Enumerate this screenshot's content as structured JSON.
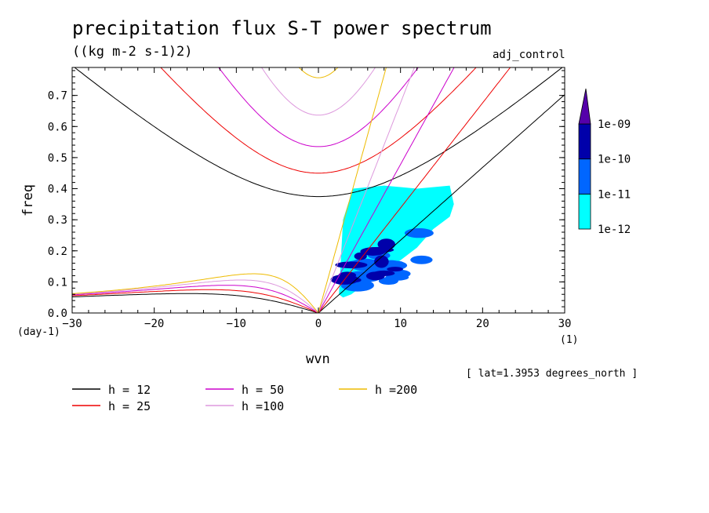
{
  "header": {
    "title": "precipitation flux S-T power spectrum",
    "units": "((kg m-2 s-1)2)",
    "run_name": "adj_control",
    "lat_note": "[ lat=1.3953 degrees_north ]"
  },
  "colors": {
    "h12": "#000000",
    "h25": "#ee0000",
    "h50": "#cc00cc",
    "h100": "#dd99dd",
    "h200": "#eebb00",
    "fill_cyan": "#00ffff",
    "fill_blue": "#0066ff",
    "fill_dark": "#0000aa",
    "fill_purple": "#5500aa"
  },
  "chart_data": {
    "type": "contour",
    "xlabel": "wvn",
    "ylabel": "freq",
    "x_unit": "(1)",
    "y_unit": "(day-1)",
    "xlim": [
      -30,
      30
    ],
    "ylim": [
      0,
      0.79
    ],
    "x_ticks": [
      -30,
      -20,
      -10,
      0,
      10,
      20,
      30
    ],
    "y_ticks": [
      0.0,
      0.1,
      0.2,
      0.3,
      0.4,
      0.5,
      0.6,
      0.7
    ],
    "colorbar": {
      "levels": [
        "1e-12",
        "1e-11",
        "1e-10",
        "1e-09"
      ],
      "colors": [
        "#00ffff",
        "#0066ff",
        "#0000aa",
        "#5500aa"
      ]
    },
    "dispersion_curves": [
      {
        "name": "h = 12",
        "h": 12
      },
      {
        "name": "h = 25",
        "h": 25
      },
      {
        "name": "h = 50",
        "h": 50
      },
      {
        "name": "h =100",
        "h": 100
      },
      {
        "name": "h =200",
        "h": 200
      }
    ],
    "power_regions": [
      {
        "level": "1e-12",
        "x_range": [
          2.5,
          16.5
        ],
        "freq_range": [
          0.05,
          0.41
        ]
      },
      {
        "level": "1e-11",
        "x_range": [
          3,
          13
        ],
        "freq_range": [
          0.06,
          0.37
        ]
      },
      {
        "level": "1e-10",
        "x_range": [
          3,
          11
        ],
        "freq_range": [
          0.08,
          0.26
        ]
      }
    ]
  }
}
